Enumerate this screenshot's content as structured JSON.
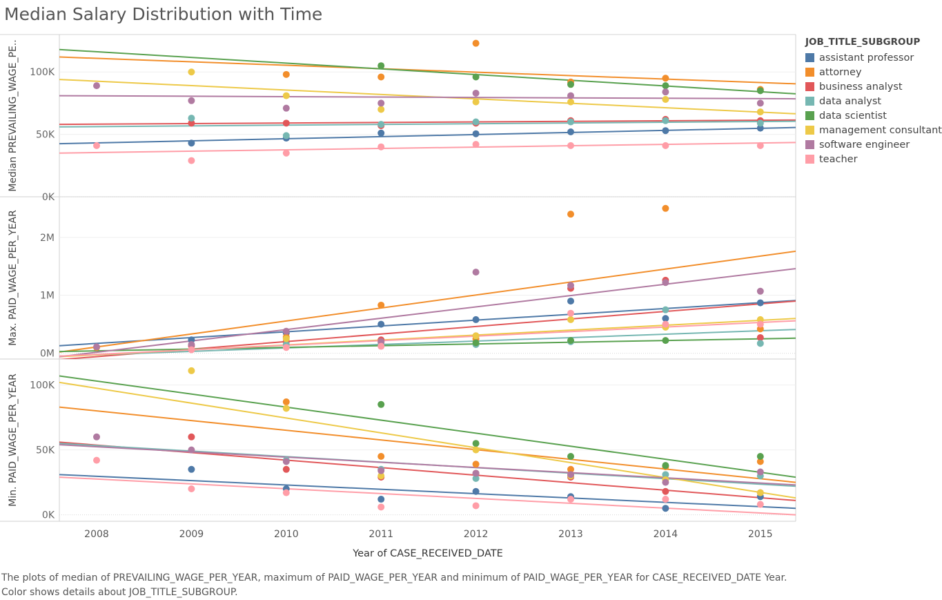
{
  "title": "Median Salary Distribution with Time",
  "caption": "The plots of median of PREVAILING_WAGE_PER_YEAR, maximum of PAID_WAGE_PER_YEAR and minimum of PAID_WAGE_PER_YEAR for CASE_RECEIVED_DATE Year.  Color shows details about JOB_TITLE_SUBGROUP.",
  "legend": {
    "title": "JOB_TITLE_SUBGROUP",
    "items": [
      {
        "label": "assistant professor",
        "color": "#4e79a7"
      },
      {
        "label": "attorney",
        "color": "#f28e2b"
      },
      {
        "label": "business analyst",
        "color": "#e15759"
      },
      {
        "label": "data analyst",
        "color": "#76b7b2"
      },
      {
        "label": "data scientist",
        "color": "#59a14f"
      },
      {
        "label": "management consultant",
        "color": "#edc948"
      },
      {
        "label": "software engineer",
        "color": "#b07aa1"
      },
      {
        "label": "teacher",
        "color": "#ff9da7"
      }
    ]
  },
  "chart_data": {
    "type": "scatter",
    "xlabel": "Year of CASE_RECEIVED_DATE",
    "x": [
      "2008",
      "2009",
      "2010",
      "2011",
      "2012",
      "2013",
      "2014",
      "2015"
    ],
    "trend_lines": true,
    "panels": [
      {
        "ylabel": "Median PREVAILING_WAGE_PE..",
        "ylim": [
          0,
          130000
        ],
        "ticks": [
          {
            "value": 0,
            "label": "0K"
          },
          {
            "value": 50000,
            "label": "50K"
          },
          {
            "value": 100000,
            "label": "100K"
          }
        ],
        "series": [
          {
            "name": "assistant professor",
            "values": [
              null,
              43000,
              47000,
              51000,
              50500,
              52000,
              53000,
              55000
            ]
          },
          {
            "name": "attorney",
            "values": [
              null,
              null,
              98000,
              96000,
              123000,
              92000,
              95000,
              86000
            ]
          },
          {
            "name": "business analyst",
            "values": [
              null,
              59000,
              59000,
              57000,
              59000,
              61000,
              62000,
              61000
            ]
          },
          {
            "name": "data analyst",
            "values": [
              null,
              63000,
              49000,
              58000,
              60000,
              60000,
              61000,
              59000
            ]
          },
          {
            "name": "data scientist",
            "values": [
              null,
              null,
              null,
              105000,
              96000,
              90000,
              89000,
              85000
            ]
          },
          {
            "name": "management consultant",
            "values": [
              null,
              100000,
              81000,
              70000,
              76000,
              76000,
              78000,
              68000
            ]
          },
          {
            "name": "software engineer",
            "values": [
              89000,
              77000,
              71000,
              75000,
              83000,
              81000,
              84000,
              75000
            ]
          },
          {
            "name": "teacher",
            "values": [
              41000,
              29000,
              35000,
              40000,
              42000,
              41000,
              41000,
              41000
            ]
          }
        ],
        "trends": [
          {
            "name": "assistant professor",
            "start": 42500,
            "end": 55500
          },
          {
            "name": "attorney",
            "start": 112000,
            "end": 90500
          },
          {
            "name": "business analyst",
            "start": 58000,
            "end": 61500
          },
          {
            "name": "data analyst",
            "start": 56000,
            "end": 60500
          },
          {
            "name": "data scientist",
            "start": 118000,
            "end": 82500
          },
          {
            "name": "management consultant",
            "start": 94000,
            "end": 66500
          },
          {
            "name": "software engineer",
            "start": 81000,
            "end": 78500
          },
          {
            "name": "teacher",
            "start": 35000,
            "end": 43500
          }
        ]
      },
      {
        "ylabel": "Max. PAID_WAGE_PER_YEAR",
        "ylim": [
          -100000,
          2700000
        ],
        "ticks": [
          {
            "value": 0,
            "label": "0M"
          },
          {
            "value": 1000000,
            "label": "1M"
          },
          {
            "value": 2000000,
            "label": "2M"
          }
        ],
        "series": [
          {
            "name": "assistant professor",
            "values": [
              null,
              230000,
              350000,
              500000,
              580000,
              900000,
              600000,
              870000
            ]
          },
          {
            "name": "attorney",
            "values": [
              100000,
              null,
              280000,
              830000,
              250000,
              2400000,
              2500000,
              420000
            ]
          },
          {
            "name": "business analyst",
            "values": [
              null,
              130000,
              200000,
              230000,
              300000,
              1120000,
              1260000,
              270000
            ]
          },
          {
            "name": "data analyst",
            "values": [
              null,
              null,
              150000,
              180000,
              150000,
              200000,
              750000,
              170000
            ]
          },
          {
            "name": "data scientist",
            "values": [
              null,
              null,
              null,
              null,
              180000,
              220000,
              220000,
              null
            ]
          },
          {
            "name": "management consultant",
            "values": [
              null,
              null,
              250000,
              200000,
              300000,
              580000,
              450000,
              580000
            ]
          },
          {
            "name": "software engineer",
            "values": [
              110000,
              150000,
              380000,
              200000,
              1400000,
              1170000,
              1220000,
              1070000
            ]
          },
          {
            "name": "teacher",
            "values": [
              null,
              60000,
              100000,
              120000,
              null,
              690000,
              500000,
              500000
            ]
          }
        ],
        "trends": [
          {
            "name": "assistant professor",
            "start": 130000,
            "end": 910000
          },
          {
            "name": "attorney",
            "start": 20000,
            "end": 1760000
          },
          {
            "name": "business analyst",
            "start": -110000,
            "end": 900000
          },
          {
            "name": "data analyst",
            "start": -50000,
            "end": 410000
          },
          {
            "name": "data scientist",
            "start": 30000,
            "end": 260000
          },
          {
            "name": "management consultant",
            "start": -60000,
            "end": 600000
          },
          {
            "name": "software engineer",
            "start": -60000,
            "end": 1460000
          },
          {
            "name": "teacher",
            "start": -50000,
            "end": 560000
          }
        ]
      },
      {
        "ylabel": "Min. PAID_WAGE_PER_YEAR",
        "ylim": [
          -5000,
          120000
        ],
        "ticks": [
          {
            "value": 0,
            "label": "0K"
          },
          {
            "value": 50000,
            "label": "50K"
          },
          {
            "value": 100000,
            "label": "100K"
          }
        ],
        "series": [
          {
            "name": "assistant professor",
            "values": [
              null,
              35000,
              20000,
              12000,
              18000,
              14000,
              5000,
              14000
            ]
          },
          {
            "name": "attorney",
            "values": [
              null,
              null,
              87000,
              45000,
              39000,
              35000,
              37000,
              41000
            ]
          },
          {
            "name": "business analyst",
            "values": [
              null,
              60000,
              35000,
              29000,
              32000,
              29000,
              18000,
              17000
            ]
          },
          {
            "name": "data analyst",
            "values": [
              null,
              null,
              42000,
              35000,
              28000,
              30000,
              31000,
              30000
            ]
          },
          {
            "name": "data scientist",
            "values": [
              null,
              null,
              null,
              85000,
              55000,
              45000,
              38000,
              45000
            ]
          },
          {
            "name": "management consultant",
            "values": [
              null,
              111000,
              82000,
              30000,
              50000,
              30000,
              27000,
              17000
            ]
          },
          {
            "name": "software engineer",
            "values": [
              60000,
              50000,
              41000,
              34000,
              32000,
              31000,
              25000,
              33000
            ]
          },
          {
            "name": "teacher",
            "values": [
              42000,
              20000,
              17000,
              6000,
              7000,
              12000,
              12000,
              8000
            ]
          }
        ],
        "trends": [
          {
            "name": "assistant professor",
            "start": 31000,
            "end": 5000
          },
          {
            "name": "attorney",
            "start": 83000,
            "end": 25000
          },
          {
            "name": "business analyst",
            "start": 56000,
            "end": 11000
          },
          {
            "name": "data analyst",
            "start": 55000,
            "end": 22000
          },
          {
            "name": "data scientist",
            "start": 107000,
            "end": 29000
          },
          {
            "name": "management consultant",
            "start": 102000,
            "end": 13000
          },
          {
            "name": "software engineer",
            "start": 54000,
            "end": 23000
          },
          {
            "name": "teacher",
            "start": 29000,
            "end": 0
          }
        ]
      }
    ]
  }
}
